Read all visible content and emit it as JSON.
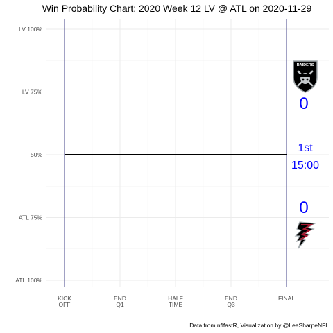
{
  "chart_data": {
    "type": "line",
    "title": "Win Probability Chart: 2020 Week 12 LV @ ATL on 2020-11-29",
    "caption": "Data from nflfastR, Visualization by @LeeSharpeNFL",
    "xlim": [
      0,
      3600
    ],
    "ylim": [
      0,
      1
    ],
    "x_ticks": [
      {
        "value": 0,
        "line1": "KICK",
        "line2": "OFF"
      },
      {
        "value": 900,
        "line1": "END",
        "line2": "Q1"
      },
      {
        "value": 1800,
        "line1": "HALF",
        "line2": "TIME"
      },
      {
        "value": 2700,
        "line1": "END",
        "line2": "Q3"
      },
      {
        "value": 3600,
        "line1": "FINAL",
        "line2": ""
      }
    ],
    "y_ticks": [
      {
        "value": 1.0,
        "label": "LV 100%"
      },
      {
        "value": 0.75,
        "label": "LV 75%"
      },
      {
        "value": 0.5,
        "label": "50%"
      },
      {
        "value": 0.25,
        "label": "ATL 75%"
      },
      {
        "value": 0.0,
        "label": "ATL 100%"
      }
    ],
    "series": [
      {
        "x": [
          0,
          3600
        ],
        "y": [
          0.5,
          0.5
        ],
        "color": "#000000"
      }
    ],
    "vlines": [
      0,
      3600
    ],
    "vline_color": "#191970",
    "annotations": {
      "away_score": "0",
      "home_score": "0",
      "quarter": "1st",
      "clock": "15:00"
    },
    "logos": {
      "away": {
        "icon": "raiders-shield-logo",
        "text": "RAIDERS",
        "color": "#000000"
      },
      "home": {
        "icon": "falcon-logo",
        "color": "#a71930"
      }
    },
    "grid": true,
    "text_color": "#0000ff"
  }
}
